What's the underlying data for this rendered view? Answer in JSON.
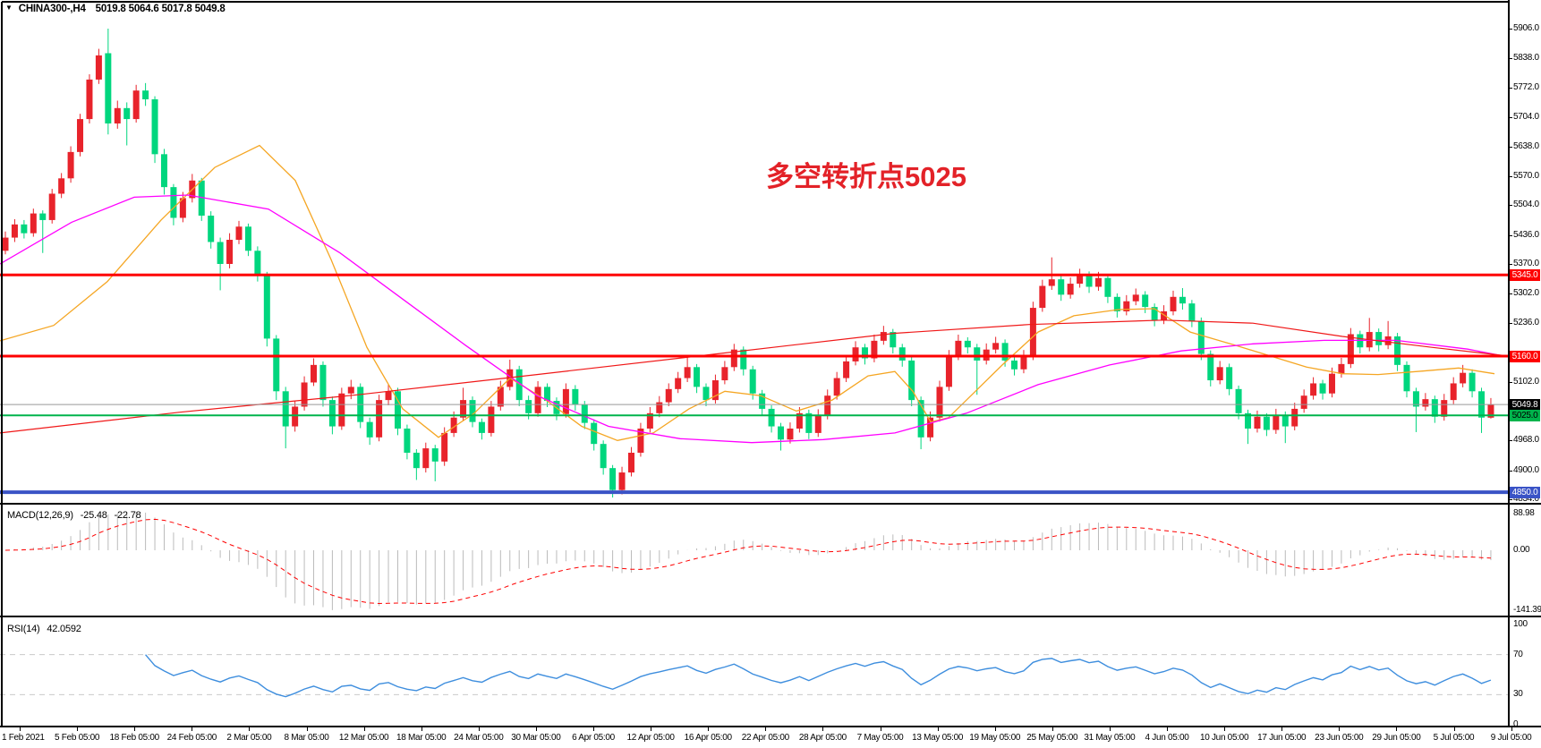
{
  "header": {
    "dropdown_icon": "▼",
    "symbol": "CHINA300-,H4",
    "ohlc": "5019.8 5064.6 5017.8 5049.8"
  },
  "annotation": {
    "text": "多空转折点5025",
    "color": "#e32228"
  },
  "colors": {
    "bull_candle": "#e8232b",
    "bear_candle": "#00d67e",
    "resistance_line": "#fe0000",
    "support_green": "#00b44c",
    "support_blue": "#3a53c6",
    "bid_line": "#999999",
    "ma_orange": "#f5a623",
    "ma_magenta": "#ff00ff",
    "ma_red": "#f01818",
    "macd_hist": "#bbbbbb",
    "macd_signal": "#fe0000",
    "rsi_line": "#3e8ede",
    "level_dash": "#c9c9c9",
    "text": "#000000"
  },
  "chart_data": {
    "type": "candlestick",
    "title": "CHINA300-,H4",
    "ylim": [
      4834.0,
      5906.0
    ],
    "y_ticks": [
      "5906.0",
      "5838.0",
      "5772.0",
      "5704.0",
      "5638.0",
      "5570.0",
      "5504.0",
      "5436.0",
      "5370.0",
      "5302.0",
      "5236.0",
      "5102.0",
      "4968.0",
      "4900.0",
      "4834.0"
    ],
    "x_labels": [
      "1 Feb 2021",
      "5 Feb 05:00",
      "18 Feb 05:00",
      "24 Feb 05:00",
      "2 Mar 05:00",
      "8 Mar 05:00",
      "12 Mar 05:00",
      "18 Mar 05:00",
      "24 Mar 05:00",
      "30 Mar 05:00",
      "6 Apr 05:00",
      "12 Apr 05:00",
      "16 Apr 05:00",
      "22 Apr 05:00",
      "28 Apr 05:00",
      "7 May 05:00",
      "13 May 05:00",
      "19 May 05:00",
      "25 May 05:00",
      "31 May 05:00",
      "4 Jun 05:00",
      "10 Jun 05:00",
      "17 Jun 05:00",
      "23 Jun 05:00",
      "29 Jun 05:00",
      "5 Jul 05:00",
      "9 Jul 05:00"
    ],
    "price_lines": [
      {
        "name": "resistance-5345",
        "price": 5345.0,
        "label": "5345.0",
        "color": "#fe0000",
        "width": 3,
        "badge_bg": "#fe0000",
        "badge_fg": "#ffffff"
      },
      {
        "name": "resistance-5160",
        "price": 5160.0,
        "label": "5160.0",
        "color": "#fe0000",
        "width": 3,
        "badge_bg": "#fe0000",
        "badge_fg": "#ffffff"
      },
      {
        "name": "bid-price",
        "price": 5049.8,
        "label": "5049.8",
        "color": "#999999",
        "width": 1,
        "badge_bg": "#000000",
        "badge_fg": "#ffffff"
      },
      {
        "name": "support-5025",
        "price": 5025.0,
        "label": "5025.0",
        "color": "#00b44c",
        "width": 2,
        "badge_bg": "#00b44c",
        "badge_fg": "#000000"
      },
      {
        "name": "support-4850",
        "price": 4850.0,
        "label": "4850.0",
        "color": "#3a53c6",
        "width": 4,
        "badge_bg": "#3a53c6",
        "badge_fg": "#ffffff"
      }
    ],
    "candles": [
      [
        5400,
        5444,
        5392,
        5430
      ],
      [
        5430,
        5472,
        5420,
        5460
      ],
      [
        5460,
        5470,
        5428,
        5440
      ],
      [
        5440,
        5496,
        5432,
        5485
      ],
      [
        5485,
        5492,
        5395,
        5470
      ],
      [
        5470,
        5541,
        5462,
        5530
      ],
      [
        5530,
        5577,
        5520,
        5565
      ],
      [
        5565,
        5638,
        5555,
        5625
      ],
      [
        5625,
        5712,
        5615,
        5700
      ],
      [
        5700,
        5802,
        5690,
        5790
      ],
      [
        5790,
        5860,
        5780,
        5845
      ],
      [
        5850,
        5906,
        5665,
        5690
      ],
      [
        5690,
        5742,
        5678,
        5725
      ],
      [
        5725,
        5738,
        5640,
        5700
      ],
      [
        5700,
        5778,
        5692,
        5765
      ],
      [
        5765,
        5782,
        5730,
        5745
      ],
      [
        5745,
        5752,
        5600,
        5620
      ],
      [
        5620,
        5632,
        5528,
        5545
      ],
      [
        5545,
        5552,
        5458,
        5475
      ],
      [
        5475,
        5534,
        5465,
        5520
      ],
      [
        5520,
        5575,
        5510,
        5560
      ],
      [
        5560,
        5566,
        5468,
        5480
      ],
      [
        5480,
        5490,
        5405,
        5420
      ],
      [
        5420,
        5430,
        5310,
        5370
      ],
      [
        5370,
        5440,
        5360,
        5425
      ],
      [
        5425,
        5468,
        5415,
        5455
      ],
      [
        5455,
        5462,
        5388,
        5400
      ],
      [
        5400,
        5410,
        5330,
        5345
      ],
      [
        5345,
        5352,
        5182,
        5200
      ],
      [
        5200,
        5208,
        5060,
        5080
      ],
      [
        5080,
        5090,
        4950,
        5000
      ],
      [
        5000,
        5058,
        4988,
        5045
      ],
      [
        5045,
        5114,
        5036,
        5100
      ],
      [
        5100,
        5155,
        5092,
        5140
      ],
      [
        5140,
        5148,
        5045,
        5060
      ],
      [
        5060,
        5068,
        4982,
        5000
      ],
      [
        5000,
        5088,
        4992,
        5075
      ],
      [
        5075,
        5106,
        5062,
        5090
      ],
      [
        5090,
        5098,
        4996,
        5010
      ],
      [
        5010,
        5020,
        4958,
        4975
      ],
      [
        4975,
        5072,
        4966,
        5060
      ],
      [
        5060,
        5095,
        5048,
        5080
      ],
      [
        5080,
        5088,
        4980,
        4995
      ],
      [
        4995,
        5004,
        4925,
        4940
      ],
      [
        4940,
        4948,
        4878,
        4905
      ],
      [
        4905,
        4963,
        4895,
        4950
      ],
      [
        4950,
        4958,
        4875,
        4920
      ],
      [
        4920,
        4998,
        4910,
        4985
      ],
      [
        4985,
        5034,
        4976,
        5020
      ],
      [
        5020,
        5088,
        5012,
        5060
      ],
      [
        5060,
        5068,
        4998,
        5010
      ],
      [
        5010,
        5018,
        4970,
        4985
      ],
      [
        4985,
        5058,
        4977,
        5045
      ],
      [
        5045,
        5104,
        5036,
        5090
      ],
      [
        5090,
        5152,
        5082,
        5130
      ],
      [
        5130,
        5138,
        5046,
        5060
      ],
      [
        5060,
        5070,
        5016,
        5030
      ],
      [
        5030,
        5103,
        5022,
        5090
      ],
      [
        5090,
        5098,
        5044,
        5058
      ],
      [
        5058,
        5066,
        5014,
        5028
      ],
      [
        5028,
        5098,
        5020,
        5085
      ],
      [
        5085,
        5094,
        5036,
        5050
      ],
      [
        5050,
        5058,
        4994,
        5008
      ],
      [
        5008,
        5016,
        4945,
        4960
      ],
      [
        4960,
        4968,
        4890,
        4905
      ],
      [
        4905,
        4912,
        4838,
        4855
      ],
      [
        4855,
        4908,
        4845,
        4895
      ],
      [
        4895,
        4953,
        4886,
        4940
      ],
      [
        4940,
        5008,
        4931,
        4995
      ],
      [
        4995,
        5044,
        4986,
        5030
      ],
      [
        5030,
        5069,
        5021,
        5055
      ],
      [
        5055,
        5098,
        5046,
        5085
      ],
      [
        5085,
        5124,
        5076,
        5110
      ],
      [
        5110,
        5162,
        5101,
        5135
      ],
      [
        5135,
        5142,
        5076,
        5090
      ],
      [
        5090,
        5098,
        5046,
        5060
      ],
      [
        5060,
        5118,
        5052,
        5105
      ],
      [
        5105,
        5149,
        5096,
        5135
      ],
      [
        5135,
        5188,
        5126,
        5175
      ],
      [
        5175,
        5182,
        5116,
        5130
      ],
      [
        5130,
        5138,
        5061,
        5075
      ],
      [
        5075,
        5083,
        5026,
        5040
      ],
      [
        5040,
        5048,
        4986,
        5000
      ],
      [
        5000,
        5008,
        4945,
        4970
      ],
      [
        4970,
        5009,
        4961,
        4995
      ],
      [
        4995,
        5044,
        4986,
        5030
      ],
      [
        5030,
        5038,
        4971,
        4985
      ],
      [
        4985,
        5039,
        4976,
        5025
      ],
      [
        5025,
        5084,
        5016,
        5070
      ],
      [
        5070,
        5124,
        5061,
        5110
      ],
      [
        5110,
        5162,
        5101,
        5148
      ],
      [
        5148,
        5194,
        5139,
        5180
      ],
      [
        5180,
        5188,
        5141,
        5155
      ],
      [
        5155,
        5209,
        5146,
        5195
      ],
      [
        5195,
        5229,
        5186,
        5215
      ],
      [
        5215,
        5222,
        5166,
        5180
      ],
      [
        5180,
        5188,
        5136,
        5150
      ],
      [
        5150,
        5158,
        5046,
        5060
      ],
      [
        5060,
        5068,
        4948,
        4975
      ],
      [
        4975,
        5034,
        4966,
        5020
      ],
      [
        5020,
        5104,
        5011,
        5090
      ],
      [
        5090,
        5174,
        5081,
        5160
      ],
      [
        5160,
        5209,
        5151,
        5195
      ],
      [
        5195,
        5203,
        5166,
        5180
      ],
      [
        5180,
        5188,
        5072,
        5150
      ],
      [
        5150,
        5189,
        5141,
        5175
      ],
      [
        5175,
        5204,
        5166,
        5190
      ],
      [
        5190,
        5198,
        5136,
        5150
      ],
      [
        5150,
        5158,
        5116,
        5130
      ],
      [
        5130,
        5174,
        5121,
        5160
      ],
      [
        5160,
        5284,
        5151,
        5270
      ],
      [
        5270,
        5334,
        5261,
        5320
      ],
      [
        5320,
        5385,
        5311,
        5335
      ],
      [
        5335,
        5343,
        5286,
        5300
      ],
      [
        5300,
        5339,
        5291,
        5325
      ],
      [
        5325,
        5359,
        5316,
        5345
      ],
      [
        5345,
        5353,
        5304,
        5318
      ],
      [
        5318,
        5352,
        5309,
        5338
      ],
      [
        5338,
        5346,
        5281,
        5295
      ],
      [
        5295,
        5303,
        5248,
        5262
      ],
      [
        5262,
        5299,
        5253,
        5285
      ],
      [
        5285,
        5314,
        5276,
        5300
      ],
      [
        5300,
        5308,
        5258,
        5272
      ],
      [
        5272,
        5280,
        5228,
        5242
      ],
      [
        5242,
        5276,
        5233,
        5262
      ],
      [
        5262,
        5309,
        5253,
        5295
      ],
      [
        5295,
        5315,
        5266,
        5280
      ],
      [
        5280,
        5288,
        5226,
        5240
      ],
      [
        5240,
        5248,
        5151,
        5165
      ],
      [
        5165,
        5173,
        5091,
        5105
      ],
      [
        5105,
        5149,
        5096,
        5135
      ],
      [
        5135,
        5143,
        5071,
        5085
      ],
      [
        5085,
        5093,
        5016,
        5030
      ],
      [
        5030,
        5038,
        4960,
        4995
      ],
      [
        4995,
        5036,
        4986,
        5022
      ],
      [
        5022,
        5030,
        4978,
        4992
      ],
      [
        4992,
        5040,
        4983,
        5026
      ],
      [
        5026,
        5034,
        4962,
        5000
      ],
      [
        5000,
        5054,
        4991,
        5040
      ],
      [
        5040,
        5084,
        5031,
        5070
      ],
      [
        5070,
        5112,
        5061,
        5098
      ],
      [
        5098,
        5106,
        5061,
        5075
      ],
      [
        5075,
        5134,
        5066,
        5120
      ],
      [
        5120,
        5156,
        5111,
        5142
      ],
      [
        5142,
        5224,
        5133,
        5210
      ],
      [
        5210,
        5218,
        5166,
        5180
      ],
      [
        5180,
        5247,
        5171,
        5215
      ],
      [
        5215,
        5223,
        5171,
        5185
      ],
      [
        5185,
        5240,
        5176,
        5205
      ],
      [
        5205,
        5213,
        5126,
        5140
      ],
      [
        5140,
        5148,
        5066,
        5080
      ],
      [
        5080,
        5088,
        4987,
        5045
      ],
      [
        5045,
        5076,
        5036,
        5062
      ],
      [
        5062,
        5070,
        5008,
        5022
      ],
      [
        5022,
        5074,
        5013,
        5060
      ],
      [
        5060,
        5112,
        5051,
        5098
      ],
      [
        5098,
        5140,
        5089,
        5122
      ],
      [
        5122,
        5130,
        5066,
        5080
      ],
      [
        5080,
        5088,
        4985,
        5020
      ],
      [
        5019.8,
        5064.6,
        5017.8,
        5049.8
      ]
    ],
    "moving_averages": [
      {
        "name": "ma-orange",
        "color": "#f5a623",
        "width": 1.3,
        "points": [
          [
            0,
            5195
          ],
          [
            60,
            5230
          ],
          [
            120,
            5330
          ],
          [
            180,
            5470
          ],
          [
            240,
            5590
          ],
          [
            290,
            5640
          ],
          [
            330,
            5560
          ],
          [
            370,
            5380
          ],
          [
            410,
            5180
          ],
          [
            450,
            5040
          ],
          [
            490,
            4975
          ],
          [
            530,
            5030
          ],
          [
            570,
            5110
          ],
          [
            610,
            5060
          ],
          [
            650,
            5000
          ],
          [
            690,
            4968
          ],
          [
            730,
            4985
          ],
          [
            770,
            5040
          ],
          [
            810,
            5080
          ],
          [
            850,
            5070
          ],
          [
            890,
            5035
          ],
          [
            930,
            5060
          ],
          [
            970,
            5115
          ],
          [
            1000,
            5125
          ],
          [
            1020,
            5080
          ],
          [
            1040,
            5010
          ],
          [
            1060,
            5020
          ],
          [
            1090,
            5080
          ],
          [
            1120,
            5140
          ],
          [
            1160,
            5215
          ],
          [
            1200,
            5252
          ],
          [
            1250,
            5266
          ],
          [
            1290,
            5268
          ],
          [
            1330,
            5215
          ],
          [
            1380,
            5185
          ],
          [
            1420,
            5160
          ],
          [
            1460,
            5135
          ],
          [
            1500,
            5120
          ],
          [
            1540,
            5118
          ],
          [
            1590,
            5126
          ],
          [
            1630,
            5133
          ],
          [
            1670,
            5120
          ]
        ]
      },
      {
        "name": "ma-magenta",
        "color": "#ff00ff",
        "width": 1.3,
        "points": [
          [
            0,
            5370
          ],
          [
            80,
            5465
          ],
          [
            150,
            5522
          ],
          [
            210,
            5527
          ],
          [
            300,
            5495
          ],
          [
            380,
            5395
          ],
          [
            450,
            5290
          ],
          [
            520,
            5185
          ],
          [
            600,
            5070
          ],
          [
            680,
            5000
          ],
          [
            760,
            4972
          ],
          [
            840,
            4963
          ],
          [
            920,
            4970
          ],
          [
            1000,
            4985
          ],
          [
            1080,
            5030
          ],
          [
            1160,
            5095
          ],
          [
            1240,
            5140
          ],
          [
            1320,
            5172
          ],
          [
            1400,
            5188
          ],
          [
            1480,
            5196
          ],
          [
            1560,
            5196
          ],
          [
            1640,
            5176
          ],
          [
            1686,
            5158
          ]
        ]
      },
      {
        "name": "ma-red",
        "color": "#f01818",
        "width": 1.2,
        "points": [
          [
            0,
            4985
          ],
          [
            200,
            5032
          ],
          [
            400,
            5072
          ],
          [
            600,
            5118
          ],
          [
            800,
            5165
          ],
          [
            1000,
            5212
          ],
          [
            1150,
            5232
          ],
          [
            1300,
            5242
          ],
          [
            1400,
            5235
          ],
          [
            1500,
            5205
          ],
          [
            1600,
            5180
          ],
          [
            1686,
            5160
          ]
        ]
      }
    ],
    "indicators": {
      "macd": {
        "title": "MACD(12,26,9)",
        "value1": "-25.48",
        "value2": "-22.78",
        "params": [
          12,
          26,
          9
        ],
        "scale_labels": [
          "88.98",
          "0.00",
          "-141.39"
        ],
        "scale": {
          "max": 88.98,
          "zero": 0.0,
          "min": -141.39
        }
      },
      "rsi": {
        "title": "RSI(14)",
        "value": "42.0592",
        "period": 14,
        "scale_labels": [
          "100",
          "70",
          "30",
          "0"
        ],
        "levels": [
          100,
          70,
          30,
          0
        ],
        "dashed_levels": [
          70,
          30
        ]
      }
    }
  }
}
